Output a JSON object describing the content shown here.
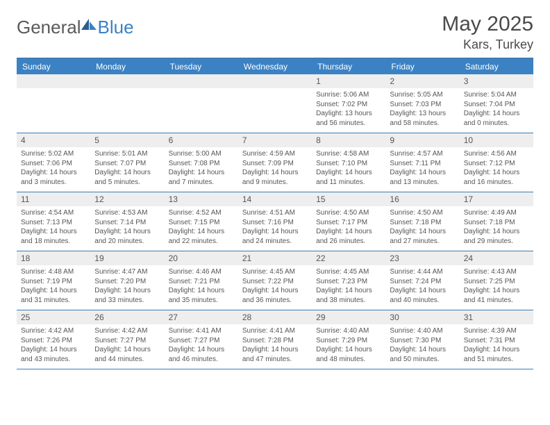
{
  "logo": {
    "text_left": "General",
    "text_right": "Blue"
  },
  "title": "May 2025",
  "location": "Kars, Turkey",
  "colors": {
    "header_bg": "#3b82c4",
    "header_text": "#ffffff",
    "border": "#3b7bb5",
    "daynum_bg": "#eeeeee",
    "text": "#555555",
    "background": "#ffffff"
  },
  "day_names": [
    "Sunday",
    "Monday",
    "Tuesday",
    "Wednesday",
    "Thursday",
    "Friday",
    "Saturday"
  ],
  "weeks": [
    [
      {
        "n": "",
        "sr": "",
        "ss": "",
        "dl": ""
      },
      {
        "n": "",
        "sr": "",
        "ss": "",
        "dl": ""
      },
      {
        "n": "",
        "sr": "",
        "ss": "",
        "dl": ""
      },
      {
        "n": "",
        "sr": "",
        "ss": "",
        "dl": ""
      },
      {
        "n": "1",
        "sr": "Sunrise: 5:06 AM",
        "ss": "Sunset: 7:02 PM",
        "dl": "Daylight: 13 hours and 56 minutes."
      },
      {
        "n": "2",
        "sr": "Sunrise: 5:05 AM",
        "ss": "Sunset: 7:03 PM",
        "dl": "Daylight: 13 hours and 58 minutes."
      },
      {
        "n": "3",
        "sr": "Sunrise: 5:04 AM",
        "ss": "Sunset: 7:04 PM",
        "dl": "Daylight: 14 hours and 0 minutes."
      }
    ],
    [
      {
        "n": "4",
        "sr": "Sunrise: 5:02 AM",
        "ss": "Sunset: 7:06 PM",
        "dl": "Daylight: 14 hours and 3 minutes."
      },
      {
        "n": "5",
        "sr": "Sunrise: 5:01 AM",
        "ss": "Sunset: 7:07 PM",
        "dl": "Daylight: 14 hours and 5 minutes."
      },
      {
        "n": "6",
        "sr": "Sunrise: 5:00 AM",
        "ss": "Sunset: 7:08 PM",
        "dl": "Daylight: 14 hours and 7 minutes."
      },
      {
        "n": "7",
        "sr": "Sunrise: 4:59 AM",
        "ss": "Sunset: 7:09 PM",
        "dl": "Daylight: 14 hours and 9 minutes."
      },
      {
        "n": "8",
        "sr": "Sunrise: 4:58 AM",
        "ss": "Sunset: 7:10 PM",
        "dl": "Daylight: 14 hours and 11 minutes."
      },
      {
        "n": "9",
        "sr": "Sunrise: 4:57 AM",
        "ss": "Sunset: 7:11 PM",
        "dl": "Daylight: 14 hours and 13 minutes."
      },
      {
        "n": "10",
        "sr": "Sunrise: 4:56 AM",
        "ss": "Sunset: 7:12 PM",
        "dl": "Daylight: 14 hours and 16 minutes."
      }
    ],
    [
      {
        "n": "11",
        "sr": "Sunrise: 4:54 AM",
        "ss": "Sunset: 7:13 PM",
        "dl": "Daylight: 14 hours and 18 minutes."
      },
      {
        "n": "12",
        "sr": "Sunrise: 4:53 AM",
        "ss": "Sunset: 7:14 PM",
        "dl": "Daylight: 14 hours and 20 minutes."
      },
      {
        "n": "13",
        "sr": "Sunrise: 4:52 AM",
        "ss": "Sunset: 7:15 PM",
        "dl": "Daylight: 14 hours and 22 minutes."
      },
      {
        "n": "14",
        "sr": "Sunrise: 4:51 AM",
        "ss": "Sunset: 7:16 PM",
        "dl": "Daylight: 14 hours and 24 minutes."
      },
      {
        "n": "15",
        "sr": "Sunrise: 4:50 AM",
        "ss": "Sunset: 7:17 PM",
        "dl": "Daylight: 14 hours and 26 minutes."
      },
      {
        "n": "16",
        "sr": "Sunrise: 4:50 AM",
        "ss": "Sunset: 7:18 PM",
        "dl": "Daylight: 14 hours and 27 minutes."
      },
      {
        "n": "17",
        "sr": "Sunrise: 4:49 AM",
        "ss": "Sunset: 7:18 PM",
        "dl": "Daylight: 14 hours and 29 minutes."
      }
    ],
    [
      {
        "n": "18",
        "sr": "Sunrise: 4:48 AM",
        "ss": "Sunset: 7:19 PM",
        "dl": "Daylight: 14 hours and 31 minutes."
      },
      {
        "n": "19",
        "sr": "Sunrise: 4:47 AM",
        "ss": "Sunset: 7:20 PM",
        "dl": "Daylight: 14 hours and 33 minutes."
      },
      {
        "n": "20",
        "sr": "Sunrise: 4:46 AM",
        "ss": "Sunset: 7:21 PM",
        "dl": "Daylight: 14 hours and 35 minutes."
      },
      {
        "n": "21",
        "sr": "Sunrise: 4:45 AM",
        "ss": "Sunset: 7:22 PM",
        "dl": "Daylight: 14 hours and 36 minutes."
      },
      {
        "n": "22",
        "sr": "Sunrise: 4:45 AM",
        "ss": "Sunset: 7:23 PM",
        "dl": "Daylight: 14 hours and 38 minutes."
      },
      {
        "n": "23",
        "sr": "Sunrise: 4:44 AM",
        "ss": "Sunset: 7:24 PM",
        "dl": "Daylight: 14 hours and 40 minutes."
      },
      {
        "n": "24",
        "sr": "Sunrise: 4:43 AM",
        "ss": "Sunset: 7:25 PM",
        "dl": "Daylight: 14 hours and 41 minutes."
      }
    ],
    [
      {
        "n": "25",
        "sr": "Sunrise: 4:42 AM",
        "ss": "Sunset: 7:26 PM",
        "dl": "Daylight: 14 hours and 43 minutes."
      },
      {
        "n": "26",
        "sr": "Sunrise: 4:42 AM",
        "ss": "Sunset: 7:27 PM",
        "dl": "Daylight: 14 hours and 44 minutes."
      },
      {
        "n": "27",
        "sr": "Sunrise: 4:41 AM",
        "ss": "Sunset: 7:27 PM",
        "dl": "Daylight: 14 hours and 46 minutes."
      },
      {
        "n": "28",
        "sr": "Sunrise: 4:41 AM",
        "ss": "Sunset: 7:28 PM",
        "dl": "Daylight: 14 hours and 47 minutes."
      },
      {
        "n": "29",
        "sr": "Sunrise: 4:40 AM",
        "ss": "Sunset: 7:29 PM",
        "dl": "Daylight: 14 hours and 48 minutes."
      },
      {
        "n": "30",
        "sr": "Sunrise: 4:40 AM",
        "ss": "Sunset: 7:30 PM",
        "dl": "Daylight: 14 hours and 50 minutes."
      },
      {
        "n": "31",
        "sr": "Sunrise: 4:39 AM",
        "ss": "Sunset: 7:31 PM",
        "dl": "Daylight: 14 hours and 51 minutes."
      }
    ]
  ]
}
